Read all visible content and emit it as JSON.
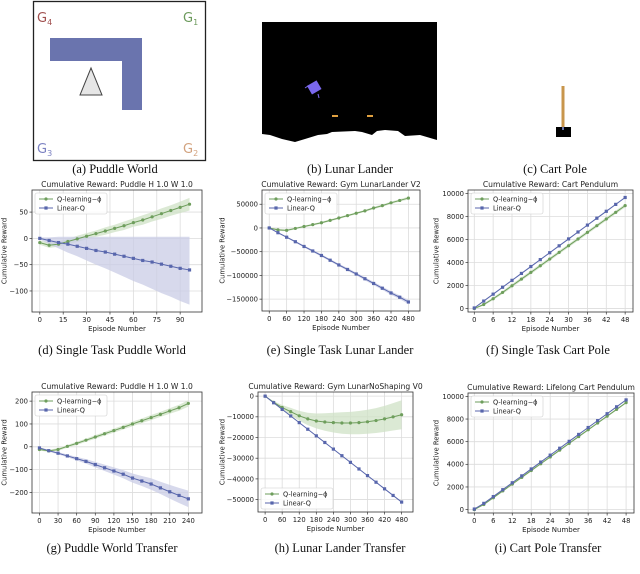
{
  "captions": {
    "a": "(a) Puddle World",
    "b": "(b) Lunar Lander",
    "c": "(c) Cart Pole",
    "d": "(d) Single Task Puddle World",
    "e": "(e) Single Task Lunar Lander",
    "f": "(f) Single Task Cart Pole",
    "g": "(g) Puddle World Transfer",
    "h": "(h) Lunar Lander Transfer",
    "i": "(i) Cart Pole Transfer"
  },
  "illustrations": {
    "puddle_world": {
      "goals": [
        {
          "letter": "G",
          "sub": "4",
          "color": "#a0504f"
        },
        {
          "letter": "G",
          "sub": "1",
          "color": "#6c9a5c"
        },
        {
          "letter": "G",
          "sub": "3",
          "color": "#7c82c2"
        },
        {
          "letter": "G",
          "sub": "2",
          "color": "#d2a27e"
        }
      ],
      "puddle_color": "#6a74ae",
      "agent": "triangle"
    },
    "lunar_lander": {
      "background": "#000000",
      "lander_color": "#7b68ee",
      "flag_color": "#e0a040"
    },
    "cart_pole": {
      "pole_color": "#c8964c",
      "cart_color": "#000000"
    }
  },
  "colors": {
    "q_learning": "#6e9e5c",
    "linear_q": "#5866ac",
    "q_band": "#cfe2c6",
    "linear_band": "#c9cce6"
  },
  "chart_data": [
    {
      "type": "line",
      "title": "Cumulative Reward: Puddle H 1.0 W 1.0",
      "xlabel": "Episode Number",
      "ylabel": "Cumulative Reward",
      "xlim": [
        -5,
        104
      ],
      "ylim": [
        -140,
        92
      ],
      "xticks": [
        0,
        15,
        30,
        45,
        60,
        75,
        90
      ],
      "yticks": [
        -100,
        -50,
        0,
        50
      ],
      "grid": true,
      "legend": "upper-left",
      "x": [
        0,
        6,
        12,
        18,
        24,
        30,
        36,
        42,
        48,
        54,
        60,
        66,
        72,
        78,
        84,
        90,
        96
      ],
      "series": [
        {
          "name": "Q-learning−ϕ",
          "y": [
            -8,
            -13,
            -11,
            -6,
            -1,
            4,
            9,
            14,
            19,
            24,
            30,
            35,
            41,
            47,
            53,
            59,
            65
          ],
          "band_lower": [
            -12,
            -18,
            -16,
            -11,
            -7,
            -2,
            3,
            7,
            12,
            16,
            22,
            26,
            32,
            37,
            43,
            48,
            53
          ],
          "band_upper": [
            -4,
            -8,
            -6,
            -1,
            5,
            10,
            15,
            21,
            26,
            32,
            38,
            44,
            50,
            57,
            63,
            70,
            77
          ]
        },
        {
          "name": "Linear-Q",
          "y": [
            0,
            -4,
            -8,
            -11,
            -15,
            -19,
            -23,
            -26,
            -30,
            -34,
            -38,
            -42,
            -45,
            -49,
            -53,
            -57,
            -60
          ],
          "band_lower": [
            -2,
            -11,
            -19,
            -27,
            -34,
            -42,
            -50,
            -57,
            -65,
            -73,
            -81,
            -88,
            -96,
            -104,
            -111,
            -119,
            -126
          ],
          "band_upper": [
            2,
            2,
            3,
            3,
            3,
            3,
            3,
            3,
            3,
            3,
            3,
            3,
            3,
            3,
            3,
            3,
            3
          ]
        }
      ]
    },
    {
      "type": "line",
      "title": "Cumulative Reward: Gym LunarLander V2",
      "xlabel": "Episode Number",
      "ylabel": "Cumulative Reward",
      "xlim": [
        -25,
        520
      ],
      "ylim": [
        -175000,
        80000
      ],
      "xticks": [
        0,
        60,
        120,
        180,
        240,
        300,
        360,
        420,
        480
      ],
      "yticks": [
        -150000,
        -100000,
        -50000,
        0,
        50000
      ],
      "grid": true,
      "legend": "upper-left",
      "x": [
        0,
        30,
        60,
        90,
        120,
        150,
        180,
        210,
        240,
        270,
        300,
        330,
        360,
        390,
        420,
        450,
        480
      ],
      "series": [
        {
          "name": "Q-learning−ϕ",
          "y": [
            0,
            -4000,
            -5000,
            -1000,
            3000,
            7000,
            11000,
            16000,
            21000,
            26000,
            31000,
            36000,
            42000,
            47000,
            53000,
            58000,
            63000
          ],
          "band_lower": [
            -1500,
            -6000,
            -7000,
            -3000,
            1000,
            5000,
            9000,
            14000,
            19000,
            24000,
            29000,
            34000,
            39500,
            44500,
            50500,
            55500,
            60000
          ],
          "band_upper": [
            1500,
            -2000,
            -3000,
            1000,
            5000,
            9000,
            13000,
            18000,
            23000,
            28000,
            33000,
            38000,
            44500,
            49500,
            55500,
            60500,
            66000
          ]
        },
        {
          "name": "Linear-Q",
          "y": [
            0,
            -10000,
            -19500,
            -29000,
            -39000,
            -48500,
            -58000,
            -68000,
            -78000,
            -87500,
            -97000,
            -107000,
            -117000,
            -127000,
            -137000,
            -146000,
            -156000
          ],
          "band_lower": [
            -1000,
            -11500,
            -21000,
            -31000,
            -41000,
            -51000,
            -60500,
            -70500,
            -80500,
            -90500,
            -100000,
            -110500,
            -120500,
            -130500,
            -141000,
            -150000,
            -160500
          ],
          "band_upper": [
            1000,
            -8500,
            -18000,
            -27000,
            -37000,
            -46000,
            -55500,
            -65500,
            -75500,
            -84500,
            -94000,
            -103500,
            -113500,
            -123500,
            -133000,
            -142000,
            -151500
          ]
        }
      ]
    },
    {
      "type": "line",
      "title": "Cumulative Reward: Cart Pendulum",
      "xlabel": "Episode Number",
      "ylabel": "Cumulative Reward",
      "xlim": [
        -2,
        50.5
      ],
      "ylim": [
        -300,
        10300
      ],
      "xticks": [
        0,
        6,
        12,
        18,
        24,
        30,
        36,
        42,
        48
      ],
      "yticks": [
        0,
        2000,
        4000,
        6000,
        8000,
        10000
      ],
      "grid": true,
      "legend": "upper-left",
      "x": [
        0,
        3,
        6,
        9,
        12,
        15,
        18,
        21,
        24,
        27,
        30,
        33,
        36,
        39,
        42,
        45,
        48
      ],
      "series": [
        {
          "name": "Q-learning−ϕ",
          "y": [
            0,
            350,
            850,
            1400,
            1980,
            2560,
            3140,
            3720,
            4300,
            4880,
            5460,
            6040,
            6620,
            7200,
            7780,
            8360,
            8940
          ],
          "band": [
            50,
            100,
            120,
            140,
            150,
            150,
            150,
            150,
            150,
            150,
            150,
            150,
            150,
            150,
            150,
            150,
            150
          ]
        },
        {
          "name": "Linear-Q",
          "y": [
            50,
            650,
            1250,
            1850,
            2450,
            3050,
            3650,
            4250,
            4850,
            5450,
            6050,
            6650,
            7250,
            7850,
            8450,
            9050,
            9650
          ],
          "band": [
            30,
            50,
            60,
            60,
            60,
            60,
            60,
            60,
            60,
            60,
            60,
            60,
            60,
            60,
            60,
            60,
            60
          ]
        }
      ]
    },
    {
      "type": "line",
      "title": "Cumulative Reward: Puddle H 1.0 W 1.0",
      "xlabel": "Episode Number",
      "ylabel": "Cumulative Reward",
      "xlim": [
        -12,
        262
      ],
      "ylim": [
        -290,
        240
      ],
      "xticks": [
        0,
        30,
        60,
        90,
        120,
        150,
        180,
        210,
        240
      ],
      "yticks": [
        -200,
        -100,
        0,
        100,
        200
      ],
      "grid": true,
      "legend": "upper-left",
      "x": [
        0,
        15,
        30,
        45,
        60,
        75,
        90,
        105,
        120,
        135,
        150,
        165,
        180,
        195,
        210,
        225,
        240
      ],
      "series": [
        {
          "name": "Q-learning−ϕ",
          "y": [
            -12,
            -18,
            -12,
            2,
            15,
            29,
            43,
            57,
            71,
            85,
            100,
            114,
            128,
            142,
            157,
            171,
            190
          ],
          "band": [
            4,
            5,
            6,
            6,
            7,
            7,
            8,
            8,
            9,
            9,
            10,
            10,
            11,
            11,
            12,
            13,
            14
          ]
        },
        {
          "name": "Linear-Q",
          "y": [
            -5,
            -17,
            -28,
            -40,
            -52,
            -64,
            -78,
            -92,
            -106,
            -120,
            -137,
            -150,
            -163,
            -180,
            -197,
            -213,
            -228
          ],
          "band": [
            3,
            4,
            5,
            6,
            8,
            10,
            12,
            14,
            16,
            18,
            20,
            22,
            25,
            27,
            30,
            33,
            36
          ]
        }
      ]
    },
    {
      "type": "line",
      "title": "Cumulative Reward: Gym LunarNoShaping V0",
      "xlabel": "Episode Number",
      "ylabel": "Cumulative Reward",
      "xlim": [
        -25,
        520
      ],
      "ylim": [
        -56000,
        2000
      ],
      "xticks": [
        0,
        60,
        120,
        180,
        240,
        300,
        360,
        420,
        480
      ],
      "yticks": [
        -50000,
        -40000,
        -30000,
        -20000,
        -10000,
        0
      ],
      "grid": true,
      "legend": "lower-left",
      "x": [
        0,
        30,
        60,
        90,
        120,
        150,
        180,
        210,
        240,
        270,
        300,
        330,
        360,
        390,
        420,
        450,
        480
      ],
      "series": [
        {
          "name": "Q-learning−ϕ",
          "y": [
            0,
            -3000,
            -5500,
            -7500,
            -9500,
            -11000,
            -12000,
            -12500,
            -12800,
            -13000,
            -13000,
            -12800,
            -12400,
            -11800,
            -11000,
            -10000,
            -9000
          ],
          "band": [
            200,
            600,
            1200,
            1800,
            2400,
            3000,
            3600,
            4200,
            4800,
            5200,
            5400,
            5600,
            5800,
            6000,
            6300,
            6600,
            7000
          ]
        },
        {
          "name": "Linear-Q",
          "y": [
            0,
            -3200,
            -6400,
            -9600,
            -12800,
            -16000,
            -19200,
            -22400,
            -25600,
            -28800,
            -32000,
            -35200,
            -38400,
            -41600,
            -44800,
            -48000,
            -51200
          ],
          "band": [
            200,
            200,
            200,
            200,
            200,
            200,
            200,
            200,
            200,
            200,
            200,
            200,
            200,
            200,
            200,
            200,
            200
          ]
        }
      ]
    },
    {
      "type": "line",
      "title": "Cumulative Reward: Lifelong Cart Pendulum",
      "xlabel": "Episode Number",
      "ylabel": "Cumulative Reward",
      "xlim": [
        -2,
        50.5
      ],
      "ylim": [
        -300,
        10300
      ],
      "xticks": [
        0,
        6,
        12,
        18,
        24,
        30,
        36,
        42,
        48
      ],
      "yticks": [
        0,
        2000,
        4000,
        6000,
        8000,
        10000
      ],
      "grid": true,
      "legend": "upper-left",
      "x": [
        0,
        3,
        6,
        9,
        12,
        15,
        18,
        21,
        24,
        27,
        30,
        33,
        36,
        39,
        42,
        45,
        48
      ],
      "series": [
        {
          "name": "Q-learning−ϕ",
          "y": [
            0,
            450,
            1050,
            1650,
            2250,
            2850,
            3450,
            4050,
            4650,
            5250,
            5850,
            6450,
            7050,
            7650,
            8250,
            8850,
            9450
          ],
          "band": [
            50,
            60,
            80,
            80,
            80,
            80,
            80,
            80,
            80,
            80,
            80,
            80,
            80,
            80,
            80,
            80,
            80
          ]
        },
        {
          "name": "Linear-Q",
          "y": [
            50,
            550,
            1150,
            1760,
            2370,
            2980,
            3590,
            4200,
            4810,
            5420,
            6030,
            6640,
            7250,
            7860,
            8470,
            9080,
            9690
          ],
          "band": [
            30,
            40,
            40,
            40,
            40,
            40,
            40,
            40,
            40,
            40,
            40,
            40,
            40,
            40,
            40,
            40,
            40
          ]
        }
      ]
    }
  ]
}
